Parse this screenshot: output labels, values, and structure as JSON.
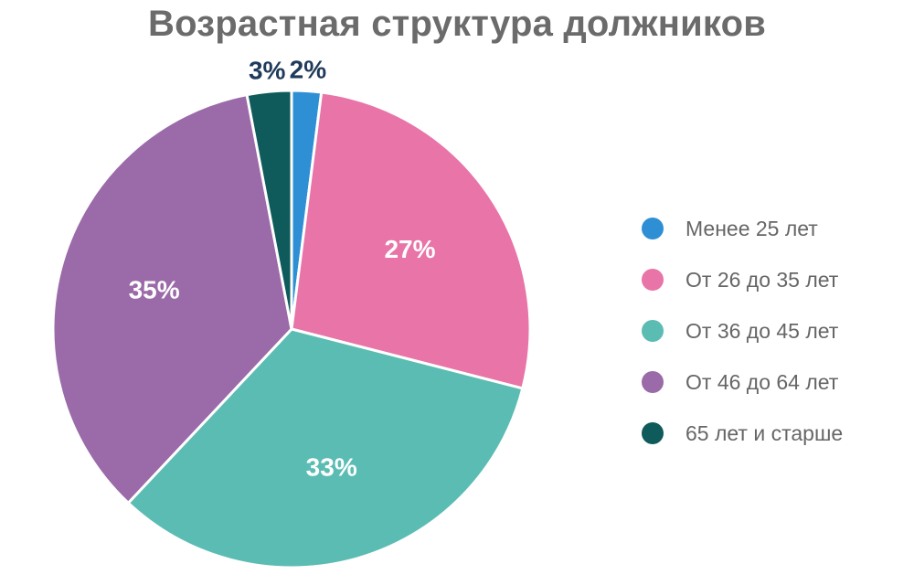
{
  "chart_data": {
    "type": "pie",
    "title": "Возрастная структура должников",
    "categories": [
      "Менее 25 лет",
      "От 26 до 35 лет",
      "От 36 до 45 лет",
      "От 46 до 64 лет",
      "65 лет и старше"
    ],
    "values": [
      2,
      27,
      33,
      35,
      3
    ],
    "value_labels": [
      "2%",
      "27%",
      "33%",
      "35%",
      "3%"
    ],
    "colors": [
      "#2f8fd4",
      "#e874a8",
      "#5bbcb4",
      "#9b6aa8",
      "#0f5a5a"
    ],
    "label_colors": [
      "#1f3a5a",
      "#ffffff",
      "#ffffff",
      "#ffffff",
      "#1f3a5a"
    ],
    "unit": "%",
    "legend_position": "right"
  }
}
